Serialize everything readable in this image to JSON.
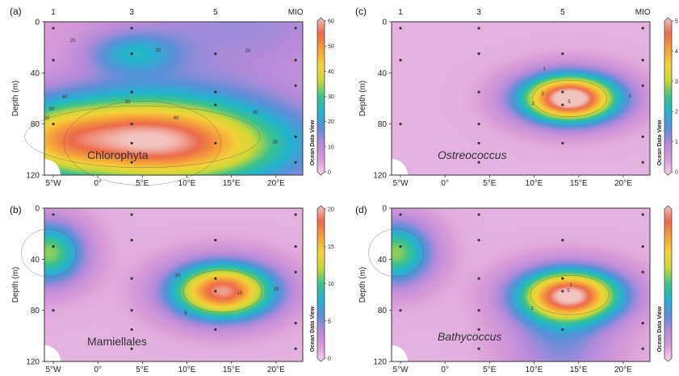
{
  "watermark": "Ocean Data View",
  "colors": {
    "background": "#e8b6d8",
    "frame": "#333333",
    "sample_dot": "#333333",
    "no_data": "#ffffff",
    "scale": [
      "#f5d6ea",
      "#d89ad8",
      "#b48ad9",
      "#5a8fd8",
      "#23b4d0",
      "#3cc28a",
      "#c8d83a",
      "#f4d23a",
      "#f4a23a",
      "#ec6a4a",
      "#f2c4c0"
    ]
  },
  "chart_data": [
    {
      "id": "a",
      "panel_label": "(a)",
      "type": "heatmap",
      "title": "Chlorophyta",
      "title_italic": false,
      "xlabel": "",
      "ylabel": "Depth (m)",
      "xlim": [
        -6,
        23
      ],
      "ylim": [
        120,
        0
      ],
      "xticks": [
        {
          "v": -5,
          "t": "5°W"
        },
        {
          "v": 0,
          "t": "0°"
        },
        {
          "v": 5,
          "t": "5°E"
        },
        {
          "v": 10,
          "t": "10°E"
        },
        {
          "v": 15,
          "t": "15°E"
        },
        {
          "v": 20,
          "t": "20°E"
        }
      ],
      "yticks": [
        0,
        40,
        80,
        120
      ],
      "stations": [
        {
          "x": -5,
          "t": "1"
        },
        {
          "x": 3.8,
          "t": "3"
        },
        {
          "x": 13.2,
          "t": "5"
        },
        {
          "x": 22.2,
          "t": "MIO"
        }
      ],
      "colorbar": {
        "min": 0,
        "max": 60,
        "ticks": [
          0,
          10,
          20,
          30,
          40,
          50,
          60
        ]
      },
      "contour_labels": [
        "20",
        "20",
        "30",
        "40",
        "50",
        "60",
        "40",
        "30",
        "30",
        "20"
      ],
      "samples": [
        [
          -5,
          5
        ],
        [
          -5,
          30
        ],
        [
          -5,
          80
        ],
        [
          3.8,
          5
        ],
        [
          3.8,
          25
        ],
        [
          3.8,
          55
        ],
        [
          3.8,
          80
        ],
        [
          3.8,
          95
        ],
        [
          3.8,
          110
        ],
        [
          13.2,
          25
        ],
        [
          13.2,
          55
        ],
        [
          13.2,
          65
        ],
        [
          13.2,
          95
        ],
        [
          22.2,
          5
        ],
        [
          22.2,
          30
        ],
        [
          22.2,
          50
        ],
        [
          22.2,
          90
        ],
        [
          22.2,
          110
        ]
      ],
      "components": [
        {
          "value": 35,
          "x": 5,
          "y": 90,
          "sx": 12,
          "sy": 22
        },
        {
          "value": 18,
          "x": 5,
          "y": 95,
          "sx": 8,
          "sy": 30
        },
        {
          "value": 12,
          "x": -5,
          "y": 95,
          "sx": 4,
          "sy": 20
        },
        {
          "value": 15,
          "x": 4,
          "y": 25,
          "sx": 3.5,
          "sy": 11
        },
        {
          "value": 10,
          "x": 14,
          "y": 110,
          "sx": 8,
          "sy": 20
        },
        {
          "value": 10,
          "x": 16,
          "y": 0,
          "sx": 12,
          "sy": 40
        }
      ]
    },
    {
      "id": "c",
      "panel_label": "(c)",
      "type": "heatmap",
      "title": "Ostreococcus",
      "title_italic": true,
      "xlabel": "",
      "ylabel": "Depth (m)",
      "xlim": [
        -6,
        23
      ],
      "ylim": [
        120,
        0
      ],
      "xticks": [
        {
          "v": -5,
          "t": "5°W"
        },
        {
          "v": 0,
          "t": "0°"
        },
        {
          "v": 5,
          "t": "5°E"
        },
        {
          "v": 10,
          "t": "10°E"
        },
        {
          "v": 15,
          "t": "15°E"
        },
        {
          "v": 20,
          "t": "20°E"
        }
      ],
      "yticks": [
        0,
        40,
        80,
        120
      ],
      "stations": [
        {
          "x": -5,
          "t": "1"
        },
        {
          "x": 3.8,
          "t": "3"
        },
        {
          "x": 13.2,
          "t": "5"
        },
        {
          "x": 22.2,
          "t": "MIO"
        }
      ],
      "colorbar": {
        "min": 0,
        "max": 5,
        "ticks": [
          0,
          1,
          2,
          3,
          4,
          5
        ]
      },
      "contour_labels": [
        "1",
        "1",
        "3",
        "3",
        "5"
      ],
      "samples": [
        [
          -5,
          5
        ],
        [
          -5,
          30
        ],
        [
          -5,
          80
        ],
        [
          3.8,
          5
        ],
        [
          3.8,
          25
        ],
        [
          3.8,
          55
        ],
        [
          3.8,
          80
        ],
        [
          3.8,
          95
        ],
        [
          3.8,
          110
        ],
        [
          13.2,
          25
        ],
        [
          13.2,
          55
        ],
        [
          13.2,
          65
        ],
        [
          13.2,
          95
        ],
        [
          22.2,
          5
        ],
        [
          22.2,
          30
        ],
        [
          22.2,
          50
        ],
        [
          22.2,
          90
        ],
        [
          22.2,
          110
        ]
      ],
      "components": [
        {
          "value": 5.2,
          "x": 14,
          "y": 60,
          "sx": 3.8,
          "sy": 13
        }
      ]
    },
    {
      "id": "b",
      "panel_label": "(b)",
      "type": "heatmap",
      "title": "Mamiellales",
      "title_italic": false,
      "xlabel": "",
      "ylabel": "Depth (m)",
      "xlim": [
        -6,
        23
      ],
      "ylim": [
        120,
        0
      ],
      "xticks": [
        {
          "v": -5,
          "t": "5°W"
        },
        {
          "v": 0,
          "t": "0°"
        },
        {
          "v": 5,
          "t": "5°E"
        },
        {
          "v": 10,
          "t": "10°E"
        },
        {
          "v": 15,
          "t": "15°E"
        },
        {
          "v": 20,
          "t": "20°E"
        }
      ],
      "yticks": [
        0,
        40,
        80,
        120
      ],
      "stations": [],
      "colorbar": {
        "min": 0,
        "max": 20,
        "ticks": [
          0,
          5,
          10,
          15,
          20
        ]
      },
      "contour_labels": [
        "5",
        "10",
        "10",
        "15"
      ],
      "samples": [
        [
          -5,
          5
        ],
        [
          -5,
          30
        ],
        [
          -5,
          80
        ],
        [
          3.8,
          5
        ],
        [
          3.8,
          25
        ],
        [
          3.8,
          55
        ],
        [
          3.8,
          80
        ],
        [
          3.8,
          95
        ],
        [
          3.8,
          110
        ],
        [
          13.2,
          25
        ],
        [
          13.2,
          55
        ],
        [
          13.2,
          65
        ],
        [
          13.2,
          95
        ],
        [
          22.2,
          5
        ],
        [
          22.2,
          30
        ],
        [
          22.2,
          50
        ],
        [
          22.2,
          90
        ],
        [
          22.2,
          110
        ]
      ],
      "components": [
        {
          "value": 18,
          "x": 14,
          "y": 65,
          "sx": 4,
          "sy": 15
        },
        {
          "value": 10,
          "x": -5.5,
          "y": 35,
          "sx": 2.8,
          "sy": 17
        }
      ]
    },
    {
      "id": "d",
      "panel_label": "(d)",
      "type": "heatmap",
      "title": "Bathycoccus",
      "title_italic": true,
      "xlabel": "",
      "ylabel": "Depth (m)",
      "xlim": [
        -6,
        23
      ],
      "ylim": [
        120,
        0
      ],
      "xticks": [
        {
          "v": -5,
          "t": "5°W"
        },
        {
          "v": 0,
          "t": "0°"
        },
        {
          "v": 5,
          "t": "5°E"
        },
        {
          "v": 10,
          "t": "10°E"
        },
        {
          "v": 15,
          "t": "15°E"
        },
        {
          "v": 20,
          "t": "20°E"
        }
      ],
      "yticks": [
        0,
        40,
        80,
        120
      ],
      "stations": [],
      "colorbar": {
        "min": 0,
        "max": 6,
        "ticks": []
      },
      "contour_labels": [
        "1",
        "2",
        "5"
      ],
      "samples": [
        [
          -5,
          5
        ],
        [
          -5,
          30
        ],
        [
          -5,
          80
        ],
        [
          3.8,
          5
        ],
        [
          3.8,
          25
        ],
        [
          3.8,
          55
        ],
        [
          3.8,
          80
        ],
        [
          3.8,
          95
        ],
        [
          3.8,
          110
        ],
        [
          13.2,
          25
        ],
        [
          13.2,
          55
        ],
        [
          13.2,
          65
        ],
        [
          13.2,
          95
        ],
        [
          22.2,
          5
        ],
        [
          22.2,
          30
        ],
        [
          22.2,
          50
        ],
        [
          22.2,
          90
        ],
        [
          22.2,
          110
        ]
      ],
      "components": [
        {
          "value": 5.5,
          "x": 14,
          "y": 68,
          "sx": 4,
          "sy": 14
        },
        {
          "value": 3,
          "x": -5.5,
          "y": 35,
          "sx": 2.8,
          "sy": 17
        },
        {
          "value": 1.2,
          "x": 13,
          "y": 105,
          "sx": 4,
          "sy": 25
        }
      ]
    }
  ]
}
